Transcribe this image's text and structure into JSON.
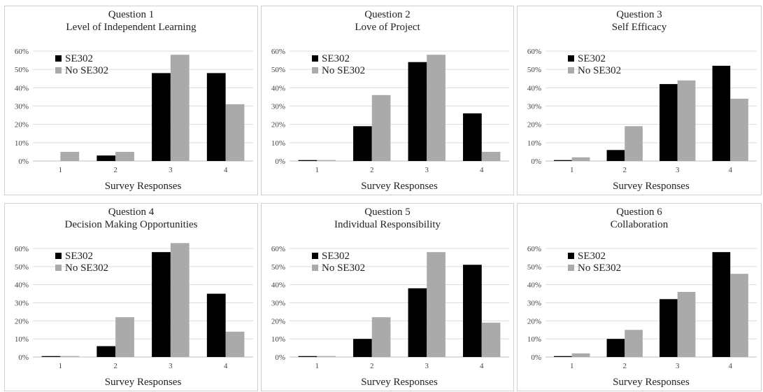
{
  "chart_data": [
    {
      "type": "bar",
      "title": "Question 1",
      "subtitle": "Level of Independent Learning",
      "xlabel": "Survey Responses",
      "ylabel": "",
      "categories": [
        "1",
        "2",
        "3",
        "4"
      ],
      "ylim": [
        0,
        0.6
      ],
      "yticks": [
        "0%",
        "10%",
        "20%",
        "30%",
        "40%",
        "50%",
        "60%"
      ],
      "legend_position": "top-left",
      "series": [
        {
          "name": "SE302",
          "color": "#000000",
          "values": [
            0.0,
            0.03,
            0.48,
            0.48
          ]
        },
        {
          "name": "No SE302",
          "color": "#aaaaaa",
          "values": [
            0.05,
            0.05,
            0.58,
            0.31
          ]
        }
      ]
    },
    {
      "type": "bar",
      "title": "Question 2",
      "subtitle": "Love of Project",
      "xlabel": "Survey Responses",
      "ylabel": "",
      "categories": [
        "1",
        "2",
        "3",
        "4"
      ],
      "ylim": [
        0,
        0.6
      ],
      "yticks": [
        "0%",
        "10%",
        "20%",
        "30%",
        "40%",
        "50%",
        "60%"
      ],
      "legend_position": "top-left",
      "series": [
        {
          "name": "SE302",
          "color": "#000000",
          "values": [
            0.005,
            0.19,
            0.54,
            0.26
          ]
        },
        {
          "name": "No SE302",
          "color": "#aaaaaa",
          "values": [
            0.005,
            0.36,
            0.58,
            0.05
          ]
        }
      ]
    },
    {
      "type": "bar",
      "title": "Question 3",
      "subtitle": "Self Efficacy",
      "xlabel": "Survey Responses",
      "ylabel": "",
      "categories": [
        "1",
        "2",
        "3",
        "4"
      ],
      "ylim": [
        0,
        0.6
      ],
      "yticks": [
        "0%",
        "10%",
        "20%",
        "30%",
        "40%",
        "50%",
        "60%"
      ],
      "legend_position": "top-left",
      "series": [
        {
          "name": "SE302",
          "color": "#000000",
          "values": [
            0.005,
            0.06,
            0.42,
            0.52
          ]
        },
        {
          "name": "No SE302",
          "color": "#aaaaaa",
          "values": [
            0.02,
            0.19,
            0.44,
            0.34
          ]
        }
      ]
    },
    {
      "type": "bar",
      "title": "Question 4",
      "subtitle": "Decision Making Opportunities",
      "xlabel": "Survey Responses",
      "ylabel": "",
      "categories": [
        "1",
        "2",
        "3",
        "4"
      ],
      "ylim": [
        0,
        0.6
      ],
      "yticks": [
        "0%",
        "10%",
        "20%",
        "30%",
        "40%",
        "50%",
        "60%"
      ],
      "legend_position": "top-left",
      "series": [
        {
          "name": "SE302",
          "color": "#000000",
          "values": [
            0.005,
            0.06,
            0.58,
            0.35
          ]
        },
        {
          "name": "No SE302",
          "color": "#aaaaaa",
          "values": [
            0.005,
            0.22,
            0.63,
            0.14
          ]
        }
      ]
    },
    {
      "type": "bar",
      "title": "Question 5",
      "subtitle": "Individual Responsibility",
      "xlabel": "Survey Responses",
      "ylabel": "",
      "categories": [
        "1",
        "2",
        "3",
        "4"
      ],
      "ylim": [
        0,
        0.6
      ],
      "yticks": [
        "0%",
        "10%",
        "20%",
        "30%",
        "40%",
        "50%",
        "60%"
      ],
      "legend_position": "top-left",
      "series": [
        {
          "name": "SE302",
          "color": "#000000",
          "values": [
            0.005,
            0.1,
            0.38,
            0.51
          ]
        },
        {
          "name": "No SE302",
          "color": "#aaaaaa",
          "values": [
            0.005,
            0.22,
            0.58,
            0.19
          ]
        }
      ]
    },
    {
      "type": "bar",
      "title": "Question 6",
      "subtitle": "Collaboration",
      "xlabel": "Survey Responses",
      "ylabel": "",
      "categories": [
        "1",
        "2",
        "3",
        "4"
      ],
      "ylim": [
        0,
        0.6
      ],
      "yticks": [
        "0%",
        "10%",
        "20%",
        "30%",
        "40%",
        "50%",
        "60%"
      ],
      "legend_position": "top-left",
      "series": [
        {
          "name": "SE302",
          "color": "#000000",
          "values": [
            0.005,
            0.1,
            0.32,
            0.58
          ]
        },
        {
          "name": "No SE302",
          "color": "#aaaaaa",
          "values": [
            0.02,
            0.15,
            0.36,
            0.46
          ]
        }
      ]
    }
  ]
}
